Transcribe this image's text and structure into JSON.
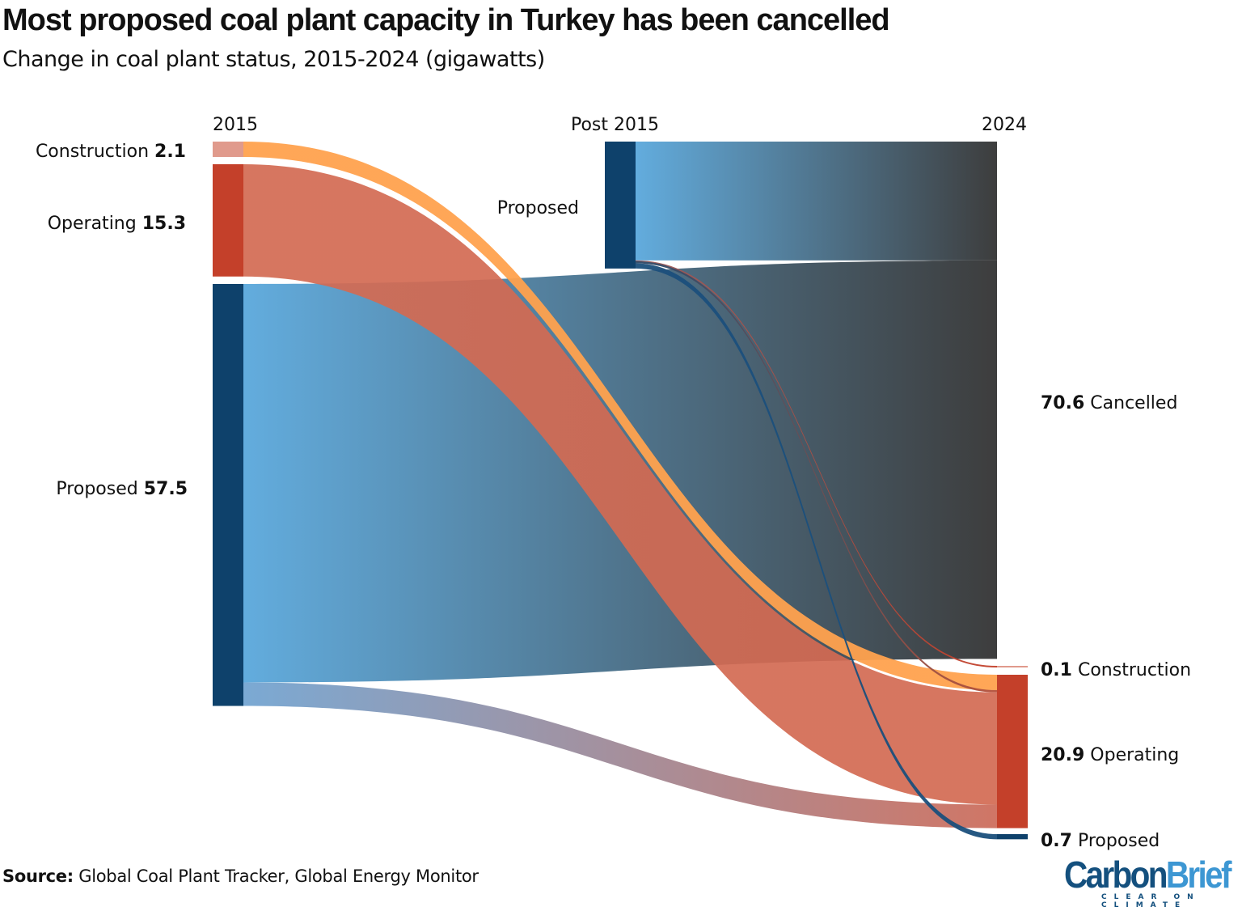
{
  "title": "Most proposed coal plant capacity in Turkey has been cancelled",
  "subtitle": "Change in coal plant status, 2015-2024 (gigawatts)",
  "source_label": "Source:",
  "source_text": " Global Coal Plant Tracker, Global Energy Monitor",
  "logo": {
    "part1": "Carbon",
    "part2": "Brief",
    "tagline": "CLEAR ON CLIMATE"
  },
  "chart_data": {
    "type": "sankey",
    "units": "gigawatts",
    "column_labels": [
      "2015",
      "Post 2015",
      "2024"
    ],
    "nodes": [
      {
        "id": "con2015",
        "column": 0,
        "label": "Construction",
        "value": "2.1",
        "color": "#e09a8c"
      },
      {
        "id": "op2015",
        "column": 0,
        "label": "Operating",
        "value": "15.3",
        "color": "#c4402a"
      },
      {
        "id": "prop2015",
        "column": 0,
        "label": "Proposed",
        "value": "57.5",
        "color": "#0e416b"
      },
      {
        "id": "post",
        "column": 1,
        "label": "Proposed",
        "value": "",
        "color": "#0e416b"
      },
      {
        "id": "can2024",
        "column": 2,
        "label": "Cancelled",
        "value": "70.6",
        "color": "#333333"
      },
      {
        "id": "con2024",
        "column": 2,
        "label": "Construction",
        "value": "0.1",
        "color": "#e09a8c"
      },
      {
        "id": "op2024",
        "column": 2,
        "label": "Operating",
        "value": "20.9",
        "color": "#c4402a"
      },
      {
        "id": "prop2024",
        "column": 2,
        "label": "Proposed",
        "value": "0.7",
        "color": "#0e416b"
      }
    ],
    "flows": [
      {
        "from": "post",
        "to": "can2024",
        "value": 16.2,
        "color_from": "#5aa8dc",
        "color_to": "#333333"
      },
      {
        "from": "prop2015",
        "to": "can2024",
        "value": 54.3,
        "color_from": "#5aa8dc",
        "color_to": "#333333"
      },
      {
        "from": "con2015",
        "to": "op2024",
        "value": 2.1,
        "color_from": "#ffa24e",
        "color_to": "#ffa24e"
      },
      {
        "from": "post",
        "to": "con2024",
        "value": 0.1,
        "color_from": "#9a5a5a",
        "color_to": "#c4402a"
      },
      {
        "from": "post",
        "to": "op2024",
        "value": 0.3,
        "color_from": "#2a4a6a",
        "color_to": "#b5503a"
      },
      {
        "from": "op2015",
        "to": "op2024",
        "value": 15.3,
        "color_from": "#d36a52",
        "color_to": "#d36a52"
      },
      {
        "from": "prop2015",
        "to": "op2024",
        "value": 3.2,
        "color_from": "#6fa2d0",
        "color_to": "#cc6a58"
      },
      {
        "from": "post",
        "to": "prop2024",
        "value": 0.7,
        "color_from": "#1b4f7c",
        "color_to": "#1b4f7c"
      }
    ]
  }
}
